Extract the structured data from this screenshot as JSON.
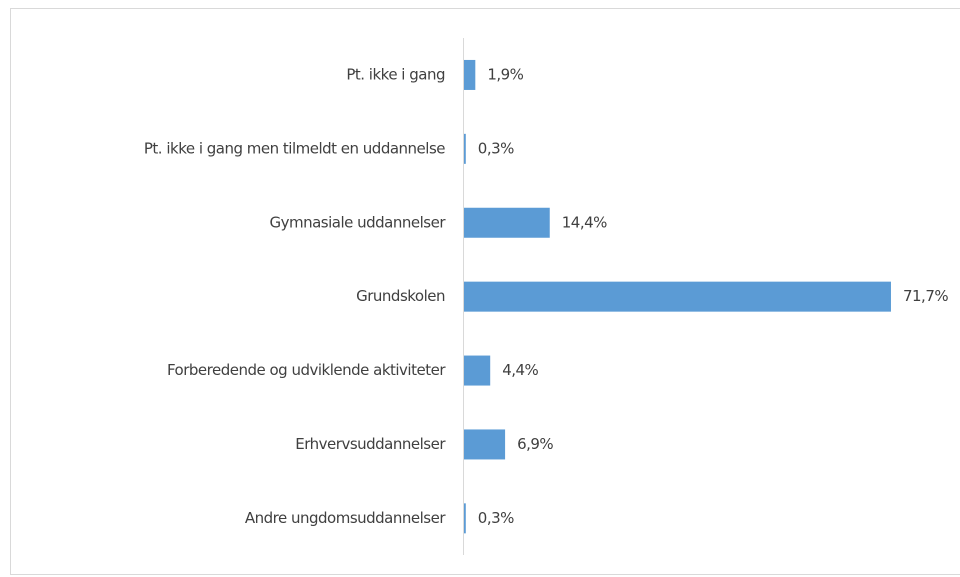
{
  "chart_data": {
    "type": "barh",
    "categories": [
      "Pt. ikke i gang",
      "Pt. ikke i gang men tilmeldt en uddannelse",
      "Gymnasiale uddannelser",
      "Grundskolen",
      "Forberedende og udviklende aktiviteter",
      "Erhvervsuddannelser",
      "Andre ungdomsuddannelser"
    ],
    "values": [
      1.9,
      0.3,
      14.4,
      71.7,
      4.4,
      6.9,
      0.3
    ],
    "value_labels": [
      "1,9%",
      "0,3%",
      "14,4%",
      "71,7%",
      "4,4%",
      "6,9%",
      "0,3%"
    ],
    "color": "#5b9bd5"
  }
}
